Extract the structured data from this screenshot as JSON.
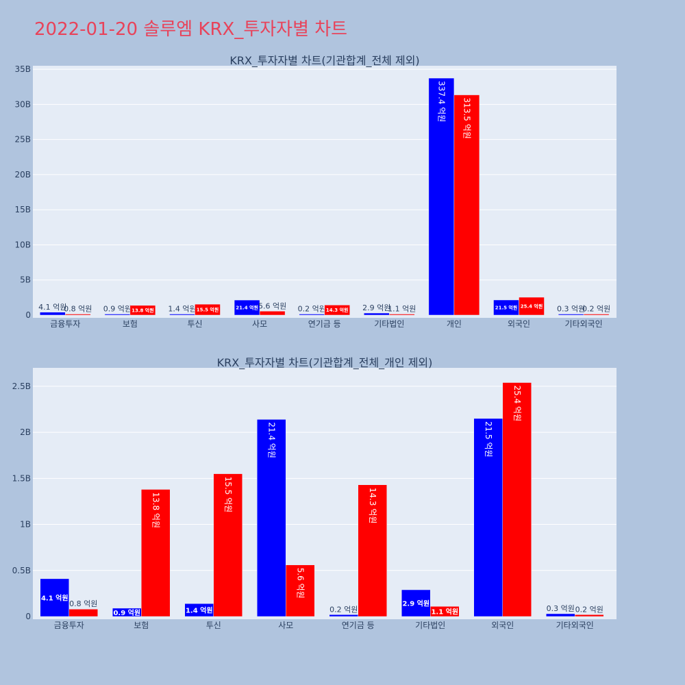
{
  "page": {
    "title": "2022-01-20 솔루엠 KRX_투자자별 차트"
  },
  "colors": {
    "buy": "#0000ff",
    "sell": "#ff0000",
    "title": "#e8435a",
    "background": "#b0c4de",
    "plot_bg": "#e5ecf6"
  },
  "chart_data": [
    {
      "type": "bar",
      "title": "KRX_투자자별 차트(기관합계_전체 제외)",
      "categories": [
        "금융투자",
        "보험",
        "투신",
        "사모",
        "연기금 등",
        "기타법인",
        "개인",
        "외국인",
        "기타외국인"
      ],
      "series": [
        {
          "color": "#0000ff",
          "values": [
            0.41,
            0.09,
            0.14,
            2.14,
            0.02,
            0.29,
            33.74,
            2.15,
            0.03
          ],
          "labels": [
            "4.1 억원",
            "0.9 억원",
            "1.4 억원",
            "21.4 억원",
            "0.2 억원",
            "2.9 억원",
            "337.4 억원",
            "21.5 억원",
            "0.3 억원"
          ]
        },
        {
          "color": "#ff0000",
          "values": [
            0.08,
            1.38,
            1.55,
            0.56,
            1.43,
            0.11,
            31.35,
            2.54,
            0.02
          ],
          "labels": [
            "0.8 억원",
            "13.8 억원",
            "15.5 억원",
            "5.6 억원",
            "14.3 억원",
            "1.1 억원",
            "313.5 억원",
            "25.4 억원",
            "0.2 억원"
          ]
        }
      ],
      "yticks": [
        "0",
        "5B",
        "10B",
        "15B",
        "20B",
        "25B",
        "30B",
        "35B"
      ],
      "ylim": [
        0,
        35.5
      ],
      "grid": true
    },
    {
      "type": "bar",
      "title": "KRX_투자자별 차트(기관합계_전체_개인 제외)",
      "categories": [
        "금융투자",
        "보험",
        "투신",
        "사모",
        "연기금 등",
        "기타법인",
        "외국인",
        "기타외국인"
      ],
      "series": [
        {
          "color": "#0000ff",
          "values": [
            0.41,
            0.09,
            0.14,
            2.14,
            0.02,
            0.29,
            2.15,
            0.03
          ],
          "labels": [
            "4.1 억원",
            "0.9 억원",
            "1.4 억원",
            "21.4 억원",
            "0.2 억원",
            "2.9 억원",
            "21.5 억원",
            "0.3 억원"
          ]
        },
        {
          "color": "#ff0000",
          "values": [
            0.08,
            1.38,
            1.55,
            0.56,
            1.43,
            0.11,
            2.54,
            0.02
          ],
          "labels": [
            "0.8 억원",
            "13.8 억원",
            "15.5 억원",
            "5.6 억원",
            "14.3 억원",
            "1.1 억원",
            "25.4 억원",
            "0.2 억원"
          ]
        }
      ],
      "yticks": [
        "0",
        "0.5B",
        "1B",
        "1.5B",
        "2B",
        "2.5B"
      ],
      "ylim": [
        0,
        2.7
      ],
      "grid": true
    }
  ]
}
